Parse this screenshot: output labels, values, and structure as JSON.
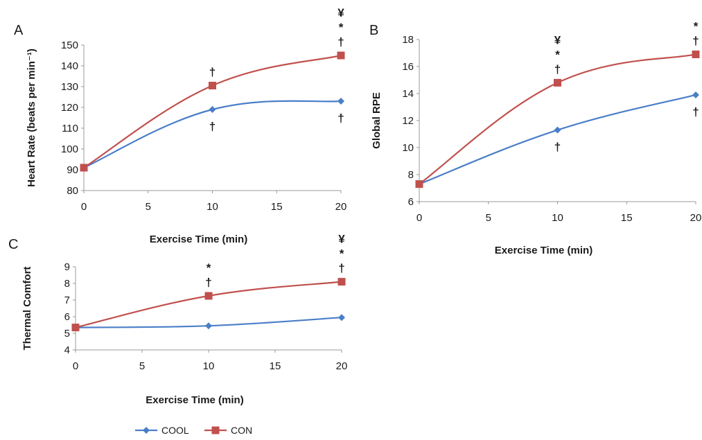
{
  "chart_data": [
    {
      "panel": "A",
      "type": "line",
      "x": [
        0,
        10,
        20
      ],
      "xticks": [
        0,
        5,
        10,
        15,
        20
      ],
      "xlim": [
        0,
        20
      ],
      "ylim": [
        80,
        150
      ],
      "yticks": [
        80,
        90,
        100,
        110,
        120,
        130,
        140,
        150
      ],
      "xlabel": "Exercise Time (min)",
      "ylabel": "Heart Rate (beats per min⁻¹)",
      "grid": false,
      "series": [
        {
          "name": "COOL",
          "color": "#4a7ec8",
          "marker": "diamond",
          "values": [
            91,
            119,
            123
          ]
        },
        {
          "name": "CON",
          "color": "#c0504d",
          "marker": "square",
          "values": [
            91,
            130.5,
            145
          ]
        }
      ],
      "annotations": [
        {
          "series": "CON",
          "x": 10,
          "position": "above",
          "symbols": [
            "†"
          ]
        },
        {
          "series": "COOL",
          "x": 10,
          "position": "below",
          "symbols": [
            "†"
          ]
        },
        {
          "series": "CON",
          "x": 20,
          "position": "above",
          "symbols": [
            "¥",
            "*",
            "†"
          ]
        },
        {
          "series": "COOL",
          "x": 20,
          "position": "below",
          "symbols": [
            "†"
          ]
        }
      ]
    },
    {
      "panel": "B",
      "type": "line",
      "x": [
        0,
        10,
        20
      ],
      "xticks": [
        0,
        5,
        10,
        15,
        20
      ],
      "xlim": [
        0,
        20
      ],
      "ylim": [
        6,
        18
      ],
      "yticks": [
        6,
        8,
        10,
        12,
        14,
        16,
        18
      ],
      "xlabel": "Exercise Time (min)",
      "ylabel": "Global RPE",
      "grid": false,
      "series": [
        {
          "name": "COOL",
          "color": "#4a7ec8",
          "marker": "diamond",
          "values": [
            7.3,
            11.3,
            13.9
          ]
        },
        {
          "name": "CON",
          "color": "#c0504d",
          "marker": "square",
          "values": [
            7.3,
            14.8,
            16.9
          ]
        }
      ],
      "annotations": [
        {
          "series": "CON",
          "x": 10,
          "position": "above",
          "symbols": [
            "¥",
            "*",
            "†"
          ]
        },
        {
          "series": "COOL",
          "x": 10,
          "position": "below",
          "symbols": [
            "†"
          ]
        },
        {
          "series": "CON",
          "x": 20,
          "position": "above",
          "symbols": [
            "*",
            "†"
          ]
        },
        {
          "series": "COOL",
          "x": 20,
          "position": "below",
          "symbols": [
            "†"
          ]
        }
      ]
    },
    {
      "panel": "C",
      "type": "line",
      "x": [
        0,
        10,
        20
      ],
      "xticks": [
        0,
        5,
        10,
        15,
        20
      ],
      "xlim": [
        0,
        20
      ],
      "ylim": [
        4,
        9
      ],
      "yticks": [
        4,
        5,
        6,
        7,
        8,
        9
      ],
      "xlabel": "Exercise Time (min)",
      "ylabel": "Thermal Comfort",
      "grid": false,
      "series": [
        {
          "name": "COOL",
          "color": "#4a7ec8",
          "marker": "diamond",
          "values": [
            5.35,
            5.45,
            5.95
          ]
        },
        {
          "name": "CON",
          "color": "#c0504d",
          "marker": "square",
          "values": [
            5.35,
            7.25,
            8.1
          ]
        }
      ],
      "annotations": [
        {
          "series": "CON",
          "x": 10,
          "position": "above",
          "symbols": [
            "*",
            "†"
          ]
        },
        {
          "series": "CON",
          "x": 20,
          "position": "above",
          "symbols": [
            "¥",
            "*",
            "†"
          ]
        }
      ]
    }
  ],
  "legend": {
    "placement": "bottom-left",
    "items": [
      {
        "name": "COOL",
        "color": "#4a7ec8",
        "marker": "diamond"
      },
      {
        "name": "CON",
        "color": "#c0504d",
        "marker": "square"
      }
    ]
  }
}
